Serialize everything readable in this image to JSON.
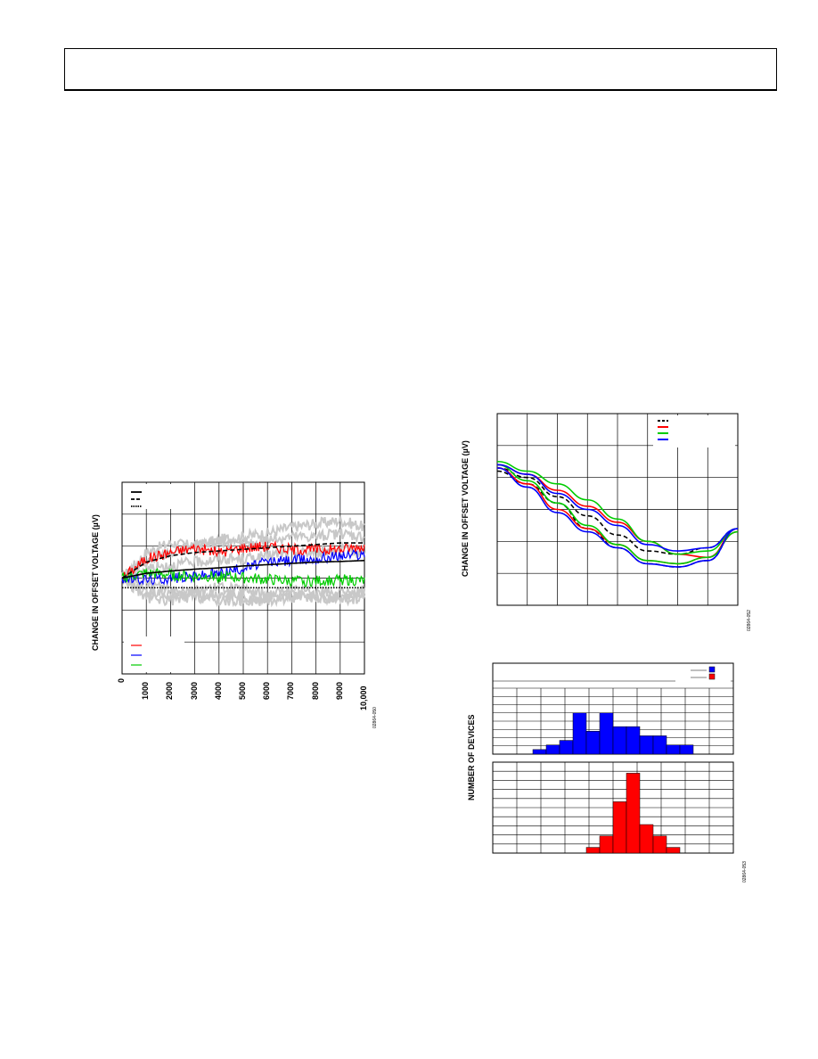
{
  "chart_data": [
    {
      "type": "line",
      "id": "fig-left",
      "ylabel": "CHANGE IN OFFSET VOLTAGE (µV)",
      "xlabel": "",
      "x_ticks": [
        "0",
        "1000",
        "2000",
        "3000",
        "4000",
        "5000",
        "6000",
        "7000",
        "8000",
        "9000",
        "10,000"
      ],
      "xlim": [
        0,
        10000
      ],
      "ylim": [
        -3,
        3
      ],
      "figure_code": "02864-050",
      "legend_top": [
        "solid",
        "dashed",
        "dotted"
      ],
      "legend_bottom_colors": [
        "#ff0000",
        "#0000ff",
        "#00cc00"
      ],
      "series": [
        {
          "color": "#ff0000",
          "style": "noisy",
          "values": [
            0,
            0.6,
            0.8,
            0.95,
            0.8,
            0.95,
            1.0,
            0.9,
            0.9,
            0.9,
            1.0
          ]
        },
        {
          "color": "#0000ff",
          "style": "noisy",
          "values": [
            0,
            -0.05,
            0.0,
            0.05,
            0.15,
            0.3,
            0.5,
            0.55,
            0.6,
            0.7,
            0.75
          ]
        },
        {
          "color": "#00cc00",
          "style": "noisy",
          "values": [
            0,
            0.15,
            0.1,
            0.05,
            0.05,
            0.0,
            -0.05,
            -0.1,
            -0.1,
            -0.05,
            -0.1
          ]
        },
        {
          "color": "#000000",
          "style": "dashed",
          "values": [
            0,
            0.5,
            0.7,
            0.8,
            0.85,
            0.9,
            0.95,
            1.0,
            1.05,
            1.1,
            1.1
          ]
        },
        {
          "color": "#000000",
          "style": "solid",
          "values": [
            0,
            0.15,
            0.22,
            0.28,
            0.32,
            0.38,
            0.42,
            0.46,
            0.5,
            0.52,
            0.55
          ]
        },
        {
          "color": "#000000",
          "style": "dotted",
          "values": [
            -0.3,
            -0.3,
            -0.3,
            -0.3,
            -0.3,
            -0.3,
            -0.3,
            -0.3,
            -0.3,
            -0.3,
            -0.3
          ]
        }
      ],
      "grey_series": [
        [
          0,
          0.8,
          1.1,
          1.0,
          1.2,
          1.3,
          1.4,
          1.6,
          1.7,
          1.8,
          1.6
        ],
        [
          0,
          0.5,
          0.8,
          1.0,
          1.1,
          1.0,
          1.2,
          1.3,
          1.3,
          1.4,
          1.3
        ],
        [
          0,
          -0.4,
          -0.5,
          -0.5,
          -0.5,
          -0.6,
          -0.6,
          -0.5,
          -0.6,
          -0.6,
          -0.5
        ],
        [
          0,
          -0.2,
          -0.3,
          -0.4,
          -0.3,
          -0.4,
          -0.5,
          -0.4,
          -0.4,
          -0.5,
          -0.4
        ],
        [
          0,
          0.3,
          0.4,
          0.5,
          0.6,
          0.6,
          0.7,
          0.8,
          0.8,
          0.9,
          0.8
        ],
        [
          0,
          -0.6,
          -0.7,
          -0.6,
          -0.7,
          -0.7,
          -0.7,
          -0.6,
          -0.6,
          -0.7,
          -0.6
        ]
      ]
    },
    {
      "type": "line",
      "id": "fig-right-top",
      "ylabel": "CHANGE IN OFFSET VOLTAGE (µV)",
      "figure_code": "02864-052",
      "legend_colors": [
        "#000000",
        "#ff0000",
        "#00cc00",
        "#0000ff"
      ],
      "xlim": [
        0,
        8
      ],
      "ylim": [
        -5,
        1
      ],
      "series": [
        {
          "color": "#000000",
          "style": "dashed",
          "values": [
            -0.7,
            -1.0,
            -1.6,
            -2.2,
            -2.8,
            -3.3,
            -3.4,
            -3.2,
            -2.6
          ]
        },
        {
          "color": "#000000",
          "style": "dashed",
          "values": [
            -0.8,
            -1.2,
            -1.8,
            -2.6,
            -3.2,
            -3.7,
            -3.8,
            -3.6,
            -2.6
          ]
        },
        {
          "color": "#ff0000",
          "style": "solid",
          "values": [
            -0.6,
            -0.9,
            -1.4,
            -1.9,
            -2.4,
            -3.0,
            -3.4,
            -3.5,
            -2.6
          ]
        },
        {
          "color": "#ff0000",
          "style": "solid",
          "values": [
            -0.7,
            -1.2,
            -2.0,
            -2.6,
            -3.1,
            -3.6,
            -3.7,
            -3.5,
            -2.7
          ]
        },
        {
          "color": "#00cc00",
          "style": "solid",
          "values": [
            -0.5,
            -0.8,
            -1.2,
            -1.7,
            -2.3,
            -3.0,
            -3.4,
            -3.3,
            -2.6
          ]
        },
        {
          "color": "#00cc00",
          "style": "solid",
          "values": [
            -0.6,
            -1.1,
            -1.8,
            -2.5,
            -3.1,
            -3.6,
            -3.7,
            -3.5,
            -2.7
          ]
        },
        {
          "color": "#0000ff",
          "style": "solid",
          "values": [
            -0.6,
            -0.9,
            -1.5,
            -2.0,
            -2.5,
            -3.1,
            -3.3,
            -3.2,
            -2.6
          ]
        },
        {
          "color": "#0000ff",
          "style": "solid",
          "values": [
            -0.7,
            -1.3,
            -2.1,
            -2.7,
            -3.2,
            -3.7,
            -3.8,
            -3.6,
            -2.6
          ]
        }
      ]
    },
    {
      "type": "bar",
      "id": "fig-right-bottom",
      "ylabel": "NUMBER OF DEVICES",
      "figure_code": "02864-053",
      "legend_colors": [
        "#0000ff",
        "#ff0000"
      ],
      "series": [
        {
          "color": "#0000ff",
          "panel": "top",
          "values": [
            0,
            0,
            0,
            1,
            2,
            3,
            9,
            5,
            9,
            6,
            6,
            4,
            4,
            2,
            2,
            0,
            0,
            0
          ]
        },
        {
          "color": "#ff0000",
          "panel": "bottom",
          "values": [
            0,
            0,
            0,
            0,
            0,
            0,
            0,
            1,
            3,
            9,
            14,
            5,
            3,
            1,
            0,
            0,
            0,
            0
          ]
        }
      ]
    }
  ]
}
